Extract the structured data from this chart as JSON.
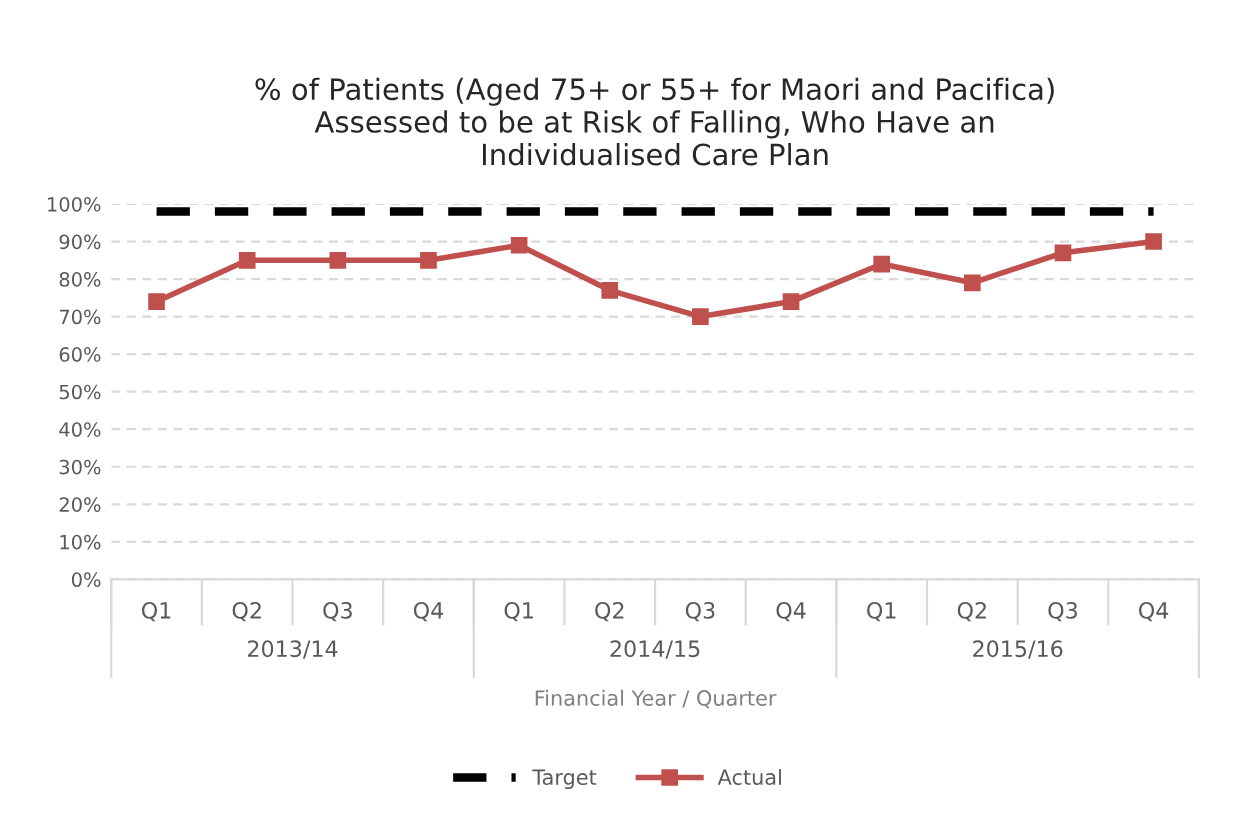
{
  "chart_data": {
    "type": "line",
    "title": "% of Patients (Aged 75+ or 55+ for Maori and Pacifica)\nAssessed to be at Risk of Falling, Who Have an\nIndividualised Care Plan",
    "xlabel": "Financial Year / Quarter",
    "categories": [
      "Q1",
      "Q2",
      "Q3",
      "Q4",
      "Q1",
      "Q2",
      "Q3",
      "Q4",
      "Q1",
      "Q2",
      "Q3",
      "Q4"
    ],
    "annotations": [
      "2013/14",
      "2014/15",
      "2015/16"
    ],
    "series": [
      {
        "name": "Target",
        "color": "#000000",
        "line_style": "dashed",
        "marker": "none",
        "values": [
          98,
          98,
          98,
          98,
          98,
          98,
          98,
          98,
          98,
          98,
          98,
          98
        ]
      },
      {
        "name": "Actual",
        "color": "#c0504d",
        "line_style": "solid",
        "marker": "square",
        "values": [
          74,
          85,
          85,
          85,
          89,
          77,
          70,
          74,
          84,
          79,
          87,
          90
        ]
      }
    ],
    "ylim": [
      0,
      100
    ],
    "yticks": [
      {
        "value": 0,
        "label": "0%"
      },
      {
        "value": 10,
        "label": "10%"
      },
      {
        "value": 20,
        "label": "20%"
      },
      {
        "value": 30,
        "label": "30%"
      },
      {
        "value": 40,
        "label": "40%"
      },
      {
        "value": 50,
        "label": "50%"
      },
      {
        "value": 60,
        "label": "60%"
      },
      {
        "value": 70,
        "label": "70%"
      },
      {
        "value": 80,
        "label": "80%"
      },
      {
        "value": 90,
        "label": "90%"
      },
      {
        "value": 100,
        "label": "100%"
      }
    ],
    "grid": "y",
    "legend": "bottom"
  }
}
